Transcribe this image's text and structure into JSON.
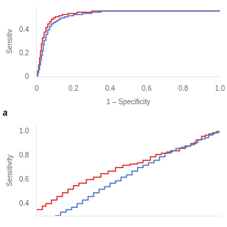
{
  "chart_data": [
    {
      "type": "step",
      "x_label": "1 – Specificity",
      "y_label": "Sensitiv",
      "annotation": "a",
      "xlim": [
        0,
        1.0
      ],
      "ylim": [
        0,
        0.6
      ],
      "xticks": [
        0,
        0.2,
        0.4,
        0.6,
        0.8,
        {
          "value": 1.0,
          "label": "1.0"
        }
      ],
      "yticks": [
        0,
        0.2,
        0.4
      ],
      "grid": false,
      "series": [
        {
          "color": "#4472C4",
          "x": [
            0,
            0.005,
            0.01,
            0.015,
            0.02,
            0.025,
            0.03,
            0.035,
            0.04,
            0.05,
            0.06,
            0.07,
            0.08,
            0.09,
            0.1,
            0.11,
            0.12,
            0.13,
            0.15,
            0.17,
            0.2,
            0.25,
            0.3,
            0.35,
            1.0
          ],
          "values": [
            0,
            0.03,
            0.06,
            0.1,
            0.14,
            0.18,
            0.22,
            0.27,
            0.31,
            0.36,
            0.4,
            0.43,
            0.45,
            0.46,
            0.47,
            0.48,
            0.49,
            0.5,
            0.51,
            0.52,
            0.53,
            0.54,
            0.55,
            0.56,
            0.56
          ]
        },
        {
          "color": "#E02020",
          "x": [
            0,
            0.005,
            0.01,
            0.015,
            0.02,
            0.025,
            0.03,
            0.04,
            0.05,
            0.06,
            0.07,
            0.08,
            0.09,
            0.1,
            0.12,
            0.14,
            0.17,
            0.22,
            0.3,
            1.0
          ],
          "values": [
            0,
            0.05,
            0.1,
            0.16,
            0.22,
            0.28,
            0.33,
            0.38,
            0.42,
            0.45,
            0.47,
            0.49,
            0.5,
            0.51,
            0.52,
            0.53,
            0.54,
            0.55,
            0.56,
            0.56
          ]
        }
      ]
    },
    {
      "type": "step",
      "y_label": "Sensitivity",
      "xlim": [
        0,
        1.0
      ],
      "ylim": [
        0.3,
        1.05
      ],
      "yticks": [
        0.4,
        0.6,
        0.8,
        {
          "value": 1.0,
          "label": "1.0"
        }
      ],
      "tick_labels": "y",
      "grid": false,
      "series": [
        {
          "color": "#4472C4",
          "x": [
            0.1,
            0.13,
            0.16,
            0.19,
            0.22,
            0.25,
            0.28,
            0.31,
            0.34,
            0.37,
            0.4,
            0.43,
            0.46,
            0.49,
            0.52,
            0.55,
            0.58,
            0.61,
            0.64,
            0.67,
            0.7,
            0.73,
            0.76,
            0.79,
            0.82,
            0.84,
            0.86,
            0.88,
            0.9,
            0.92,
            0.94,
            0.96,
            0.97,
            0.98,
            1.0
          ],
          "values": [
            0.3,
            0.33,
            0.35,
            0.37,
            0.4,
            0.43,
            0.46,
            0.49,
            0.52,
            0.54,
            0.57,
            0.59,
            0.62,
            0.64,
            0.67,
            0.7,
            0.72,
            0.74,
            0.76,
            0.79,
            0.82,
            0.84,
            0.86,
            0.87,
            0.88,
            0.89,
            0.91,
            0.93,
            0.94,
            0.95,
            0.97,
            0.98,
            0.99,
            1.0,
            1.0
          ]
        },
        {
          "color": "#E02020",
          "x": [
            0.0,
            0.03,
            0.05,
            0.08,
            0.11,
            0.14,
            0.17,
            0.2,
            0.23,
            0.27,
            0.31,
            0.35,
            0.39,
            0.43,
            0.47,
            0.51,
            0.55,
            0.58,
            0.62,
            0.65,
            0.68,
            0.71,
            0.74,
            0.78,
            0.81,
            0.84,
            0.87,
            0.9,
            0.92,
            0.94,
            0.96,
            0.98,
            0.99,
            1.0
          ],
          "values": [
            0.35,
            0.38,
            0.4,
            0.43,
            0.46,
            0.49,
            0.52,
            0.55,
            0.57,
            0.6,
            0.62,
            0.65,
            0.67,
            0.7,
            0.72,
            0.73,
            0.74,
            0.76,
            0.79,
            0.81,
            0.82,
            0.83,
            0.84,
            0.86,
            0.88,
            0.9,
            0.93,
            0.96,
            0.97,
            0.98,
            0.99,
            0.99,
            1.0,
            1.0
          ]
        }
      ]
    }
  ]
}
